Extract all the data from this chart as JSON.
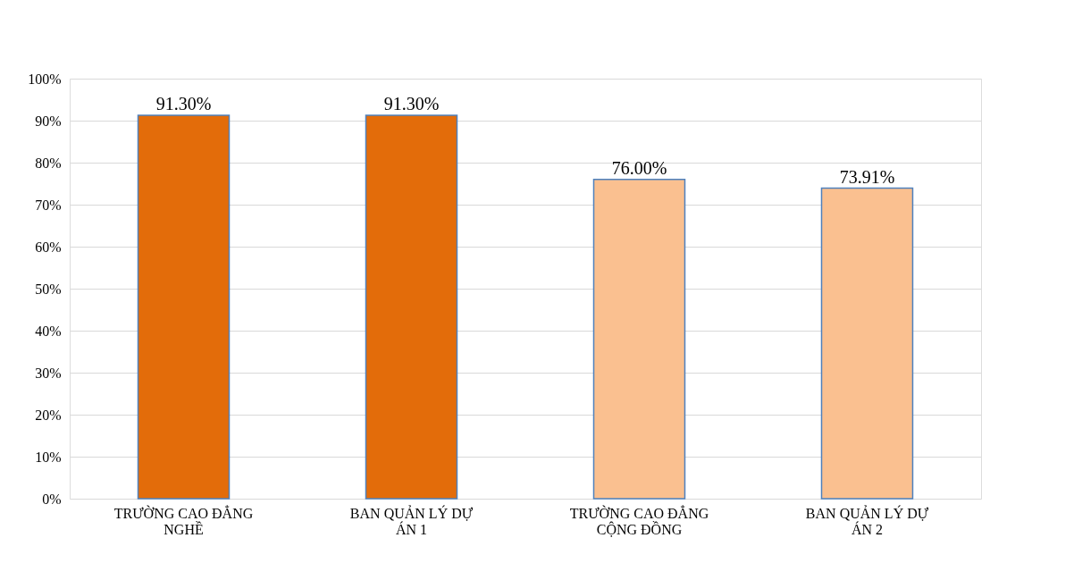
{
  "chart_data": {
    "type": "bar",
    "categories": [
      "TRƯỜNG CAO ĐẲNG NGHỀ",
      "BAN QUẢN LÝ DỰ ÁN 1",
      "TRƯỜNG CAO ĐẲNG CỘNG ĐỒNG",
      "BAN QUẢN LÝ DỰ ÁN 2"
    ],
    "values": [
      91.3,
      91.3,
      76.0,
      73.91
    ],
    "colors": [
      "#e36c0a",
      "#e36c0a",
      "#fac090",
      "#fac090"
    ],
    "value_labels": [
      "91.30%",
      "91.30%",
      "76.00%",
      "73.91%"
    ],
    "ylim": [
      0,
      100
    ],
    "yticks": [
      {
        "value": 0,
        "label": "0%"
      },
      {
        "value": 10,
        "label": "10%"
      },
      {
        "value": 20,
        "label": "20%"
      },
      {
        "value": 30,
        "label": "30%"
      },
      {
        "value": 40,
        "label": "40%"
      },
      {
        "value": 50,
        "label": "50%"
      },
      {
        "value": 60,
        "label": "60%"
      },
      {
        "value": 70,
        "label": "70%"
      },
      {
        "value": 80,
        "label": "80%"
      },
      {
        "value": 90,
        "label": "90%"
      },
      {
        "value": 100,
        "label": "100%"
      }
    ],
    "grid": true
  }
}
